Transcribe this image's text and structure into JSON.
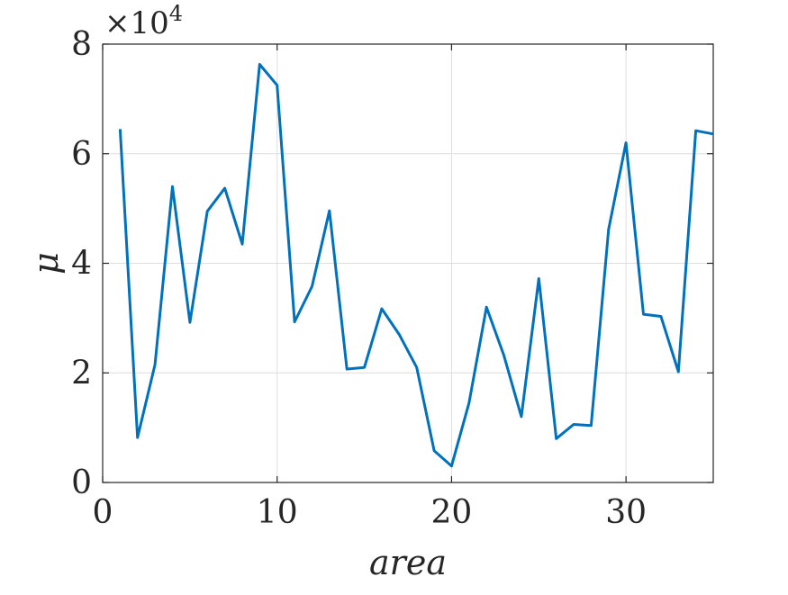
{
  "chart_data": {
    "type": "line",
    "title": "",
    "xlabel": "area",
    "ylabel": "μ",
    "y_exponent_label": "×10",
    "y_exponent_power": "4",
    "xlim": [
      0,
      35
    ],
    "ylim": [
      0,
      8
    ],
    "y_scale_note": "values in units of 10^4",
    "grid": true,
    "x_ticks": [
      0,
      10,
      20,
      30
    ],
    "y_ticks": [
      0,
      2,
      4,
      6,
      8
    ],
    "x_tick_labels": [
      "0",
      "10",
      "20",
      "30"
    ],
    "y_tick_labels": [
      "0",
      "2",
      "4",
      "6",
      "8"
    ],
    "line_color": "#0072BD",
    "x": [
      1,
      2,
      3,
      4,
      5,
      6,
      7,
      8,
      9,
      10,
      11,
      12,
      13,
      14,
      15,
      16,
      17,
      18,
      19,
      20,
      21,
      22,
      23,
      24,
      25,
      26,
      27,
      28,
      29,
      30,
      31,
      32,
      33,
      34,
      35
    ],
    "y": [
      6.45,
      0.82,
      2.15,
      5.4,
      2.92,
      4.95,
      5.37,
      4.35,
      7.63,
      7.25,
      2.93,
      3.58,
      4.96,
      2.07,
      2.1,
      3.17,
      2.7,
      2.1,
      0.58,
      0.3,
      1.45,
      3.2,
      2.32,
      1.2,
      3.72,
      0.8,
      1.06,
      1.04,
      4.62,
      6.2,
      3.07,
      3.03,
      2.02,
      6.42,
      6.36
    ]
  }
}
